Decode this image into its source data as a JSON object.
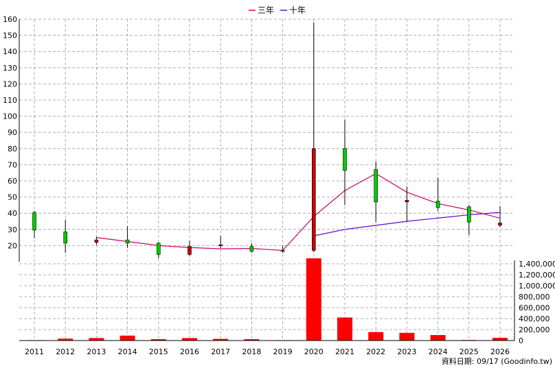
{
  "legend": {
    "items": [
      {
        "label": "三年",
        "color": "#cc0066"
      },
      {
        "label": "十年",
        "color": "#6600cc"
      }
    ]
  },
  "footer": {
    "text": "資料日期: 09/17  (Goodinfo.tw)"
  },
  "colors": {
    "up": "#00cc00",
    "down": "#cc0000",
    "volume": "#ff0000",
    "grid": "#999999"
  },
  "chart_data": [
    {
      "type": "candlestick",
      "title": "",
      "categories": [
        "2011",
        "2012",
        "2013",
        "2014",
        "2015",
        "2016",
        "2017",
        "2018",
        "2019",
        "2020",
        "2021",
        "2022",
        "2023",
        "2024",
        "2025",
        "2026"
      ],
      "ylim": [
        10,
        160
      ],
      "y_ticks": [
        20,
        30,
        40,
        50,
        60,
        70,
        80,
        90,
        100,
        110,
        120,
        130,
        140,
        150,
        160
      ],
      "grid": true,
      "candles": [
        {
          "x": "2011",
          "open": 29.5,
          "high": 41.5,
          "low": 24.5,
          "close": 40.5
        },
        {
          "x": "2012",
          "open": 21.5,
          "high": 36.0,
          "low": 15.5,
          "close": 28.5
        },
        {
          "x": "2013",
          "open": 23.5,
          "high": 25.5,
          "low": 20.5,
          "close": 22.0
        },
        {
          "x": "2014",
          "open": 21.5,
          "high": 32.0,
          "low": 18.5,
          "close": 23.5
        },
        {
          "x": "2015",
          "open": 14.5,
          "high": 22.0,
          "low": 12.0,
          "close": 21.5
        },
        {
          "x": "2016",
          "open": 19.5,
          "high": 23.0,
          "low": 13.5,
          "close": 14.5
        },
        {
          "x": "2017",
          "open": 20.5,
          "high": 26.0,
          "low": 18.5,
          "close": 20.0
        },
        {
          "x": "2018",
          "open": 16.5,
          "high": 21.5,
          "low": 15.5,
          "close": 19.5
        },
        {
          "x": "2019",
          "open": 17.0,
          "high": 20.0,
          "low": 15.5,
          "close": 17.0
        },
        {
          "x": "2020",
          "open": 80.0,
          "high": 158.0,
          "low": 16.0,
          "close": 17.0
        },
        {
          "x": "2021",
          "open": 66.5,
          "high": 98.0,
          "low": 45.0,
          "close": 80.0
        },
        {
          "x": "2022",
          "open": 47.0,
          "high": 72.0,
          "low": 34.5,
          "close": 67.0
        },
        {
          "x": "2023",
          "open": 48.0,
          "high": 56.5,
          "low": 35.0,
          "close": 47.0
        },
        {
          "x": "2024",
          "open": 43.5,
          "high": 62.0,
          "low": 41.5,
          "close": 47.5
        },
        {
          "x": "2025",
          "open": 34.5,
          "high": 45.0,
          "low": 26.5,
          "close": 44.0
        },
        {
          "x": "2026",
          "open": 34.0,
          "high": 44.5,
          "low": 31.5,
          "close": 32.5
        }
      ],
      "series": [
        {
          "name": "三年",
          "color": "#cc0066",
          "x": [
            "2013",
            "2014",
            "2015",
            "2016",
            "2017",
            "2018",
            "2019",
            "2020",
            "2021",
            "2022",
            "2023",
            "2024",
            "2025",
            "2026"
          ],
          "values": [
            25.0,
            22.5,
            20.0,
            18.8,
            18.0,
            18.2,
            17.0,
            38.0,
            54.0,
            64.5,
            53.0,
            46.0,
            42.0,
            37.0
          ]
        },
        {
          "name": "十年",
          "color": "#6600cc",
          "x": [
            "2020",
            "2021",
            "2022",
            "2023",
            "2024",
            "2025",
            "2026"
          ],
          "values": [
            26.0,
            30.0,
            32.5,
            35.0,
            37.0,
            39.0,
            40.5
          ]
        }
      ]
    },
    {
      "type": "bar",
      "title": "",
      "categories": [
        "2011",
        "2012",
        "2013",
        "2014",
        "2015",
        "2016",
        "2017",
        "2018",
        "2019",
        "2020",
        "2021",
        "2022",
        "2023",
        "2024",
        "2025",
        "2026"
      ],
      "values": [
        5000,
        35000,
        45000,
        90000,
        25000,
        45000,
        30000,
        25000,
        5000,
        1500000,
        420000,
        155000,
        140000,
        100000,
        10000,
        50000
      ],
      "ylim": [
        0,
        1500000
      ],
      "y_tick_values": [
        0,
        200000,
        400000,
        600000,
        800000,
        1000000,
        1200000,
        1400000
      ],
      "y_tick_labels": [
        "0",
        "200,000",
        "400,000",
        "600,000",
        "800,000",
        "1,000,000",
        "1,200,000",
        "1,400,000"
      ],
      "grid": true
    }
  ]
}
